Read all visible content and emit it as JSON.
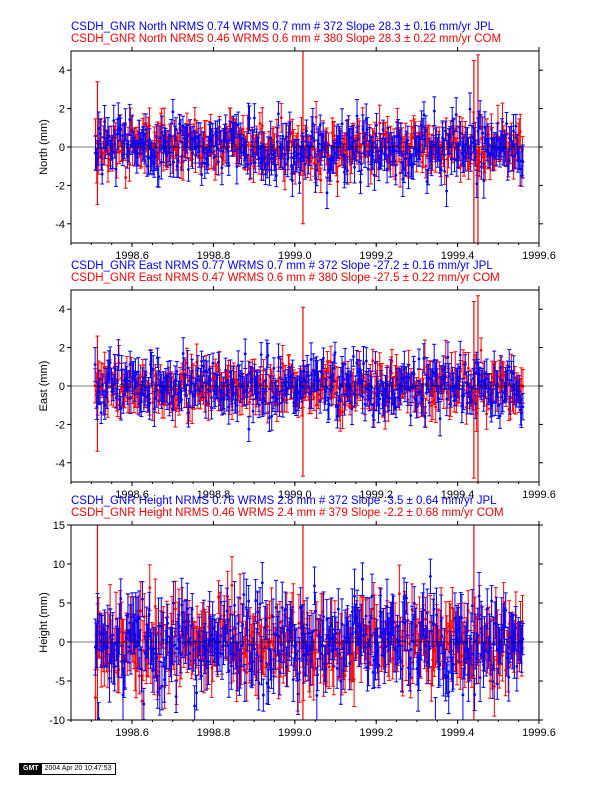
{
  "colors": {
    "jpl": "#0000ff",
    "com": "#ff0000"
  },
  "footer": {
    "logo": "GMT",
    "stamp": "2004 Apr 20 10:47:53"
  },
  "chart_data": [
    {
      "type": "scatter",
      "component": "north",
      "title_lines": [
        {
          "text": "CSDH_GNR North NRMS 0.74 WRMS  0.7 mm # 372 Slope   28.3 ±  0.16 mm/yr JPL",
          "color": "#0000ff"
        },
        {
          "text": "CSDH_GNR North NRMS 0.46 WRMS  0.6 mm # 380 Slope   28.3 ±  0.22 mm/yr COM",
          "color": "#ff0000"
        }
      ],
      "ylabel": "North (mm)",
      "xlim": [
        1998.45,
        1999.6
      ],
      "ylim": [
        -5,
        5
      ],
      "xticks": [
        1998.6,
        1998.8,
        1999.0,
        1999.2,
        1999.4,
        1999.6
      ],
      "xtick_labels": [
        "1998.6",
        "1998.8",
        "1999.0",
        "1999.2",
        "1999.4",
        "1999.6"
      ],
      "yticks": [
        -4,
        -2,
        0,
        2,
        4
      ],
      "ytick_labels": [
        "-4",
        "-2",
        "0",
        "2",
        "4"
      ],
      "x_range": [
        1998.51,
        1999.56
      ],
      "series": [
        {
          "label": "JPL",
          "color": "#0000ff",
          "count": 372,
          "slope_residual_rms": 0.7,
          "err": 0.7,
          "spread": 0.75,
          "outliers": []
        },
        {
          "label": "COM",
          "color": "#ff0000",
          "count": 380,
          "slope_residual_rms": 0.6,
          "err": 0.75,
          "spread": 0.6,
          "outliers": [
            {
              "x": 1998.515,
              "y": 0.2,
              "err": 3.2
            },
            {
              "x": 1999.02,
              "y": 0.5,
              "err": 4.5
            },
            {
              "x": 1999.44,
              "y": -0.3,
              "err": 4.8
            },
            {
              "x": 1999.45,
              "y": -0.2,
              "err": 5.0
            }
          ]
        }
      ],
      "hline": 0
    },
    {
      "type": "scatter",
      "component": "east",
      "title_lines": [
        {
          "text": "CSDH_GNR East NRMS 0.77 WRMS  0.7 mm # 372 Slope  -27.2 ±  0.16 mm/yr JPL",
          "color": "#0000ff"
        },
        {
          "text": "CSDH_GNR East NRMS 0.47 WRMS  0.6 mm # 380 Slope  -27.5 ±  0.22 mm/yr COM",
          "color": "#ff0000"
        }
      ],
      "ylabel": "East (mm)",
      "xlim": [
        1998.45,
        1999.6
      ],
      "ylim": [
        -5,
        5
      ],
      "xticks": [
        1998.6,
        1998.8,
        1999.0,
        1999.2,
        1999.4,
        1999.6
      ],
      "xtick_labels": [
        "1998.6",
        "1998.8",
        "1999.0",
        "1999.2",
        "1999.4",
        "1999.6"
      ],
      "yticks": [
        -4,
        -2,
        0,
        2,
        4
      ],
      "ytick_labels": [
        "-4",
        "-2",
        "0",
        "2",
        "4"
      ],
      "x_range": [
        1998.51,
        1999.56
      ],
      "series": [
        {
          "label": "JPL",
          "color": "#0000ff",
          "count": 372,
          "slope_residual_rms": 0.7,
          "err": 0.7,
          "spread": 0.75,
          "outliers": []
        },
        {
          "label": "COM",
          "color": "#ff0000",
          "count": 380,
          "slope_residual_rms": 0.6,
          "err": 0.75,
          "spread": 0.6,
          "outliers": [
            {
              "x": 1998.515,
              "y": -0.4,
              "err": 3.0
            },
            {
              "x": 1999.02,
              "y": -0.3,
              "err": 4.4
            },
            {
              "x": 1999.44,
              "y": -0.2,
              "err": 4.6
            },
            {
              "x": 1999.45,
              "y": -0.3,
              "err": 5.0
            }
          ]
        }
      ],
      "hline": 0
    },
    {
      "type": "scatter",
      "component": "height",
      "title_lines": [
        {
          "text": "CSDH_GNR Height NRMS 0.76 WRMS  2.8 mm # 372 Slope   -3.5 ±  0.64 mm/yr JPL",
          "color": "#0000ff"
        },
        {
          "text": "CSDH_GNR Height NRMS 0.46 WRMS  2.4 mm # 379 Slope   -2.2 ±  0.68 mm/yr COM",
          "color": "#ff0000"
        }
      ],
      "ylabel": "Height (mm)",
      "xlim": [
        1998.45,
        1999.6
      ],
      "ylim": [
        -10,
        15
      ],
      "xticks": [
        1998.6,
        1998.8,
        1999.0,
        1999.2,
        1999.4,
        1999.6
      ],
      "xtick_labels": [
        "1998.6",
        "1998.8",
        "1999.0",
        "1999.2",
        "1999.4",
        "1999.6"
      ],
      "yticks": [
        -10,
        -5,
        0,
        5,
        10,
        15
      ],
      "ytick_labels": [
        "-10",
        "-5",
        "0",
        "5",
        "10",
        "15"
      ],
      "x_range": [
        1998.51,
        1999.56
      ],
      "series": [
        {
          "label": "JPL",
          "color": "#0000ff",
          "count": 372,
          "slope_residual_rms": 2.8,
          "err": 2.8,
          "spread": 3.0,
          "outliers": []
        },
        {
          "label": "COM",
          "color": "#ff0000",
          "count": 379,
          "slope_residual_rms": 2.4,
          "err": 3.0,
          "spread": 2.4,
          "outliers": [
            {
              "x": 1998.515,
              "y": 1.0,
              "err": 14.0
            },
            {
              "x": 1999.02,
              "y": 0.5,
              "err": 15.0
            },
            {
              "x": 1999.44,
              "y": 0.0,
              "err": 15.0
            }
          ]
        }
      ],
      "hline": 0
    }
  ]
}
